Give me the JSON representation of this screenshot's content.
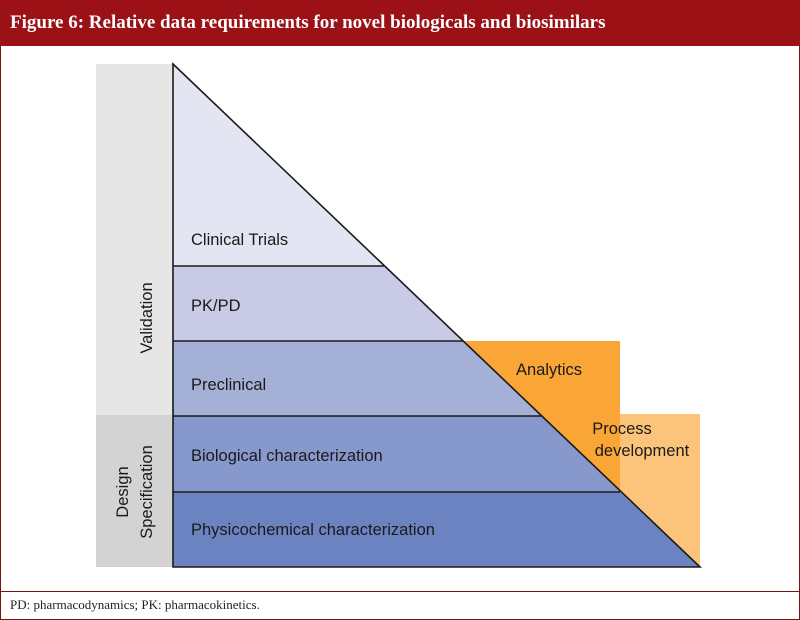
{
  "header": {
    "title": "Figure 6: Relative data requirements for novel biologicals and biosimilars"
  },
  "diagram": {
    "side_labels": {
      "validation": "Validation",
      "design_line1": "Design",
      "design_line2": "Specification"
    },
    "layers": [
      {
        "label": "Clinical Trials",
        "color": "#e3e6f2"
      },
      {
        "label": "PK/PD",
        "color": "#c9cbe6"
      },
      {
        "label": "Preclinical",
        "color": "#a5b0d6"
      },
      {
        "label": "Biological characterization",
        "color": "#8798cc"
      },
      {
        "label": "Physicochemical characterization",
        "color": "#6b84c1"
      }
    ],
    "boxes": {
      "analytics": {
        "label": "Analytics",
        "color": "#f9a636"
      },
      "process_line1": "Process",
      "process_line2": "development",
      "process_color": "#fcc47a"
    }
  },
  "footer": {
    "note": "PD: pharmacodynamics; PK: pharmacokinetics."
  }
}
